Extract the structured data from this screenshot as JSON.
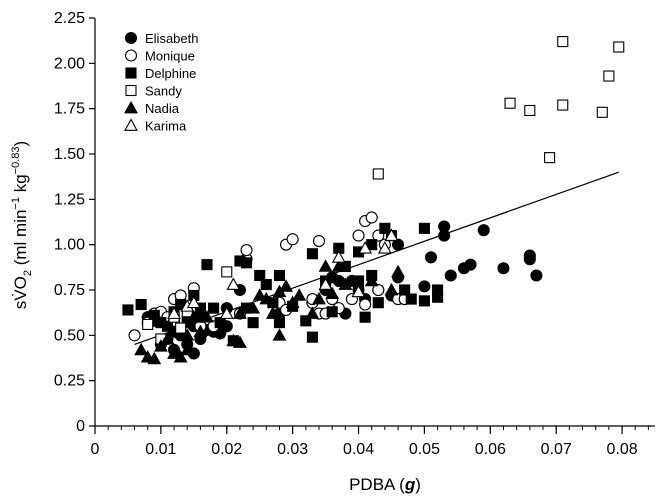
{
  "chart_data": {
    "type": "scatter",
    "xlabel": "PDBA (",
    "xlabel_unit": "g",
    "xlabel_close": ")",
    "ylabel_main": "sV̇O",
    "ylabel_sub": "2",
    "ylabel_unit_open": " (ml min",
    "ylabel_exp1": "−1",
    "ylabel_mid": " kg",
    "ylabel_exp2": "−0.83",
    "ylabel_close": ")",
    "xlim": [
      0,
      0.085
    ],
    "ylim": [
      0,
      2.25
    ],
    "xticks": [
      0,
      0.01,
      0.02,
      0.03,
      0.04,
      0.05,
      0.06,
      0.07,
      0.08
    ],
    "xtick_labels": [
      "0",
      "0.01",
      "0.02",
      "0.03",
      "0.04",
      "0.05",
      "0.06",
      "0.07",
      "0.08"
    ],
    "yticks": [
      0,
      0.25,
      0.5,
      0.75,
      1.0,
      1.25,
      1.5,
      1.75,
      2.0,
      2.25
    ],
    "ytick_labels": [
      "0",
      "0.25",
      "0.50",
      "0.75",
      "1.00",
      "1.25",
      "1.50",
      "1.75",
      "2.00",
      "2.25"
    ],
    "x_minor_step": 0.002,
    "legend_position": "top-left",
    "regression_line": {
      "x": [
        0.006,
        0.0795
      ],
      "y": [
        0.45,
        1.4
      ]
    },
    "series": [
      {
        "name": "Elisabeth",
        "marker": "circle",
        "fill": "filled",
        "points": [
          [
            0.008,
            0.6
          ],
          [
            0.009,
            0.58
          ],
          [
            0.01,
            0.45
          ],
          [
            0.011,
            0.48
          ],
          [
            0.012,
            0.52
          ],
          [
            0.012,
            0.42
          ],
          [
            0.013,
            0.5
          ],
          [
            0.014,
            0.45
          ],
          [
            0.015,
            0.55
          ],
          [
            0.015,
            0.4
          ],
          [
            0.016,
            0.48
          ],
          [
            0.017,
            0.53
          ],
          [
            0.018,
            0.52
          ],
          [
            0.019,
            0.51
          ],
          [
            0.02,
            0.55
          ],
          [
            0.02,
            0.65
          ],
          [
            0.022,
            0.75
          ],
          [
            0.028,
            0.62
          ],
          [
            0.033,
            0.68
          ],
          [
            0.035,
            0.75
          ],
          [
            0.036,
            0.82
          ],
          [
            0.037,
            0.8
          ],
          [
            0.038,
            0.62
          ],
          [
            0.039,
            0.8
          ],
          [
            0.04,
            0.75
          ],
          [
            0.041,
            0.7
          ],
          [
            0.043,
            0.75
          ],
          [
            0.045,
            0.72
          ],
          [
            0.046,
            0.82
          ],
          [
            0.046,
            1.0
          ],
          [
            0.05,
            0.77
          ],
          [
            0.051,
            0.93
          ],
          [
            0.053,
            1.05
          ],
          [
            0.053,
            1.1
          ],
          [
            0.054,
            0.83
          ],
          [
            0.056,
            0.87
          ],
          [
            0.057,
            0.89
          ],
          [
            0.059,
            1.08
          ],
          [
            0.062,
            0.87
          ],
          [
            0.066,
            0.92
          ],
          [
            0.066,
            0.94
          ],
          [
            0.067,
            0.83
          ]
        ]
      },
      {
        "name": "Monique",
        "marker": "circle",
        "fill": "open",
        "points": [
          [
            0.006,
            0.5
          ],
          [
            0.008,
            0.57
          ],
          [
            0.009,
            0.62
          ],
          [
            0.01,
            0.63
          ],
          [
            0.011,
            0.6
          ],
          [
            0.012,
            0.58
          ],
          [
            0.012,
            0.7
          ],
          [
            0.013,
            0.72
          ],
          [
            0.015,
            0.76
          ],
          [
            0.016,
            0.55
          ],
          [
            0.018,
            0.55
          ],
          [
            0.022,
            0.62
          ],
          [
            0.023,
            0.92
          ],
          [
            0.023,
            0.97
          ],
          [
            0.028,
            0.68
          ],
          [
            0.029,
            0.64
          ],
          [
            0.029,
            1.0
          ],
          [
            0.03,
            1.03
          ],
          [
            0.033,
            0.68
          ],
          [
            0.033,
            0.7
          ],
          [
            0.034,
            1.02
          ],
          [
            0.034,
            0.62
          ],
          [
            0.035,
            0.62
          ],
          [
            0.036,
            0.7
          ],
          [
            0.037,
            0.65
          ],
          [
            0.039,
            0.7
          ],
          [
            0.04,
            1.05
          ],
          [
            0.041,
            0.67
          ],
          [
            0.041,
            1.13
          ],
          [
            0.042,
            1.15
          ],
          [
            0.043,
            1.05
          ],
          [
            0.043,
            0.75
          ],
          [
            0.044,
            1.0
          ],
          [
            0.046,
            0.7
          ],
          [
            0.047,
            0.7
          ]
        ]
      },
      {
        "name": "Delphine",
        "marker": "square",
        "fill": "filled",
        "points": [
          [
            0.005,
            0.64
          ],
          [
            0.007,
            0.67
          ],
          [
            0.009,
            0.61
          ],
          [
            0.01,
            0.57
          ],
          [
            0.011,
            0.55
          ],
          [
            0.012,
            0.63
          ],
          [
            0.013,
            0.67
          ],
          [
            0.014,
            0.57
          ],
          [
            0.015,
            0.72
          ],
          [
            0.016,
            0.65
          ],
          [
            0.016,
            0.6
          ],
          [
            0.017,
            0.89
          ],
          [
            0.018,
            0.65
          ],
          [
            0.019,
            0.57
          ],
          [
            0.021,
            0.47
          ],
          [
            0.022,
            0.91
          ],
          [
            0.023,
            0.9
          ],
          [
            0.023,
            0.65
          ],
          [
            0.024,
            0.57
          ],
          [
            0.025,
            0.83
          ],
          [
            0.026,
            0.78
          ],
          [
            0.027,
            0.68
          ],
          [
            0.028,
            0.83
          ],
          [
            0.028,
            0.57
          ],
          [
            0.03,
            0.66
          ],
          [
            0.032,
            0.58
          ],
          [
            0.033,
            0.49
          ],
          [
            0.033,
            0.95
          ],
          [
            0.035,
            0.8
          ],
          [
            0.036,
            0.63
          ],
          [
            0.037,
            0.98
          ],
          [
            0.038,
            0.88
          ],
          [
            0.04,
            0.8
          ],
          [
            0.04,
            0.96
          ],
          [
            0.041,
            0.6
          ],
          [
            0.042,
            1.0
          ],
          [
            0.042,
            0.83
          ],
          [
            0.043,
            0.68
          ],
          [
            0.044,
            1.09
          ],
          [
            0.045,
            1.05
          ],
          [
            0.047,
            0.75
          ],
          [
            0.048,
            0.7
          ],
          [
            0.05,
            1.09
          ],
          [
            0.05,
            0.69
          ],
          [
            0.052,
            0.75
          ],
          [
            0.052,
            0.71
          ]
        ]
      },
      {
        "name": "Sandy",
        "marker": "square",
        "fill": "open",
        "points": [
          [
            0.008,
            0.56
          ],
          [
            0.01,
            0.48
          ],
          [
            0.012,
            0.6
          ],
          [
            0.013,
            0.54
          ],
          [
            0.014,
            0.63
          ],
          [
            0.02,
            0.85
          ],
          [
            0.043,
            1.39
          ],
          [
            0.063,
            1.78
          ],
          [
            0.066,
            1.74
          ],
          [
            0.069,
            1.48
          ],
          [
            0.071,
            2.12
          ],
          [
            0.071,
            1.77
          ],
          [
            0.077,
            1.73
          ],
          [
            0.078,
            1.93
          ],
          [
            0.0795,
            2.09
          ]
        ]
      },
      {
        "name": "Nadia",
        "marker": "triangle",
        "fill": "filled",
        "points": [
          [
            0.007,
            0.42
          ],
          [
            0.008,
            0.38
          ],
          [
            0.009,
            0.37
          ],
          [
            0.01,
            0.44
          ],
          [
            0.011,
            0.48
          ],
          [
            0.012,
            0.4
          ],
          [
            0.013,
            0.38
          ],
          [
            0.014,
            0.42
          ],
          [
            0.014,
            0.5
          ],
          [
            0.015,
            0.6
          ],
          [
            0.016,
            0.52
          ],
          [
            0.017,
            0.6
          ],
          [
            0.021,
            0.47
          ],
          [
            0.022,
            0.46
          ],
          [
            0.022,
            0.62
          ],
          [
            0.024,
            0.65
          ],
          [
            0.025,
            0.72
          ],
          [
            0.026,
            0.7
          ],
          [
            0.027,
            0.62
          ],
          [
            0.028,
            0.74
          ],
          [
            0.028,
            0.5
          ],
          [
            0.029,
            0.77
          ],
          [
            0.03,
            0.68
          ],
          [
            0.031,
            0.72
          ],
          [
            0.033,
            0.62
          ],
          [
            0.034,
            0.7
          ],
          [
            0.035,
            0.78
          ],
          [
            0.035,
            0.88
          ],
          [
            0.036,
            0.73
          ],
          [
            0.037,
            0.88
          ],
          [
            0.038,
            0.78
          ],
          [
            0.04,
            0.74
          ],
          [
            0.042,
            0.8
          ],
          [
            0.045,
            0.75
          ],
          [
            0.046,
            0.85
          ]
        ]
      },
      {
        "name": "Karima",
        "marker": "triangle",
        "fill": "open",
        "points": [
          [
            0.012,
            0.62
          ],
          [
            0.014,
            0.66
          ],
          [
            0.015,
            0.68
          ],
          [
            0.02,
            0.62
          ],
          [
            0.021,
            0.78
          ],
          [
            0.035,
            0.78
          ],
          [
            0.037,
            0.93
          ],
          [
            0.04,
            0.74
          ],
          [
            0.041,
            0.98
          ],
          [
            0.044,
            0.98
          ],
          [
            0.045,
            1.05
          ]
        ]
      }
    ]
  }
}
